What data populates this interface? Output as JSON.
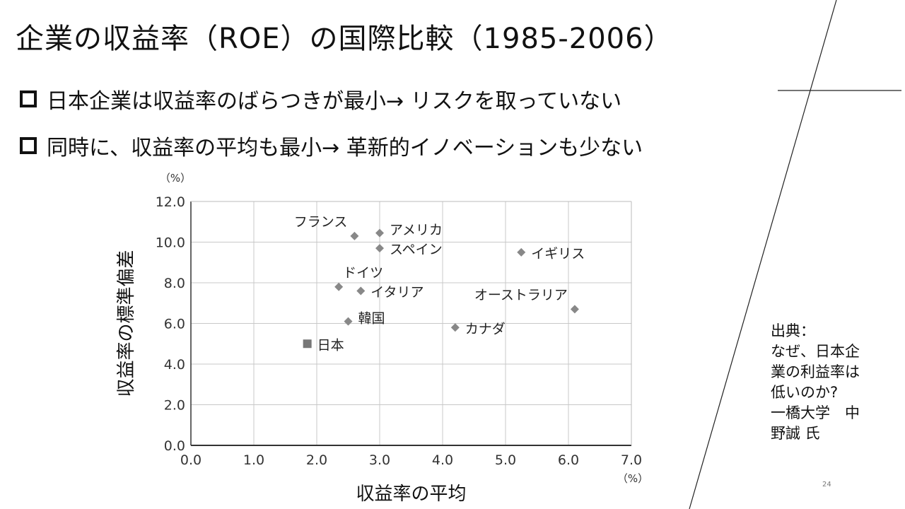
{
  "slide": {
    "title": "企業の収益率（ROE）の国際比較（1985-2006）",
    "bullets": [
      "日本企業は収益率のばらつきが最小→ リスクを取っていない",
      "同時に、収益率の平均も最小→ 革新的イノベーションも少ない"
    ],
    "source": {
      "lines": [
        "出典：",
        "なぜ、日本企",
        "業の利益率は",
        "低いのか?",
        "一橋大学　中",
        "野誠 氏"
      ]
    },
    "page_number": "24"
  },
  "chart_data": {
    "type": "scatter",
    "title": "",
    "xlabel": "収益率の平均",
    "ylabel": "収益率の標準偏差",
    "x_unit": "（%）",
    "y_unit": "（%）",
    "xlim": [
      0,
      7
    ],
    "ylim": [
      0,
      12
    ],
    "x_ticks": [
      "0.0",
      "1.0",
      "2.0",
      "3.0",
      "4.0",
      "5.0",
      "6.0",
      "7.0"
    ],
    "y_ticks": [
      "0.0",
      "2.0",
      "4.0",
      "6.0",
      "8.0",
      "10.0",
      "12.0"
    ],
    "grid": true,
    "marker_color": "#888888",
    "highlight_color": "#777777",
    "points": [
      {
        "label": "フランス",
        "x": 2.6,
        "y": 10.3,
        "marker": "diamond",
        "label_pos": "above-left"
      },
      {
        "label": "アメリカ",
        "x": 3.0,
        "y": 10.45,
        "marker": "diamond",
        "label_pos": "right-up"
      },
      {
        "label": "スペイン",
        "x": 3.0,
        "y": 9.7,
        "marker": "diamond",
        "label_pos": "right"
      },
      {
        "label": "イギリス",
        "x": 5.25,
        "y": 9.5,
        "marker": "diamond",
        "label_pos": "right"
      },
      {
        "label": "ドイツ",
        "x": 2.35,
        "y": 7.8,
        "marker": "diamond",
        "label_pos": "above-right"
      },
      {
        "label": "イタリア",
        "x": 2.7,
        "y": 7.6,
        "marker": "diamond",
        "label_pos": "right"
      },
      {
        "label": "オーストラリア",
        "x": 6.1,
        "y": 6.7,
        "marker": "diamond",
        "label_pos": "above-left"
      },
      {
        "label": "韓国",
        "x": 2.5,
        "y": 6.1,
        "marker": "diamond",
        "label_pos": "right-up"
      },
      {
        "label": "カナダ",
        "x": 4.2,
        "y": 5.8,
        "marker": "diamond",
        "label_pos": "right"
      },
      {
        "label": "日本",
        "x": 1.85,
        "y": 5.0,
        "marker": "square",
        "label_pos": "right"
      }
    ]
  }
}
